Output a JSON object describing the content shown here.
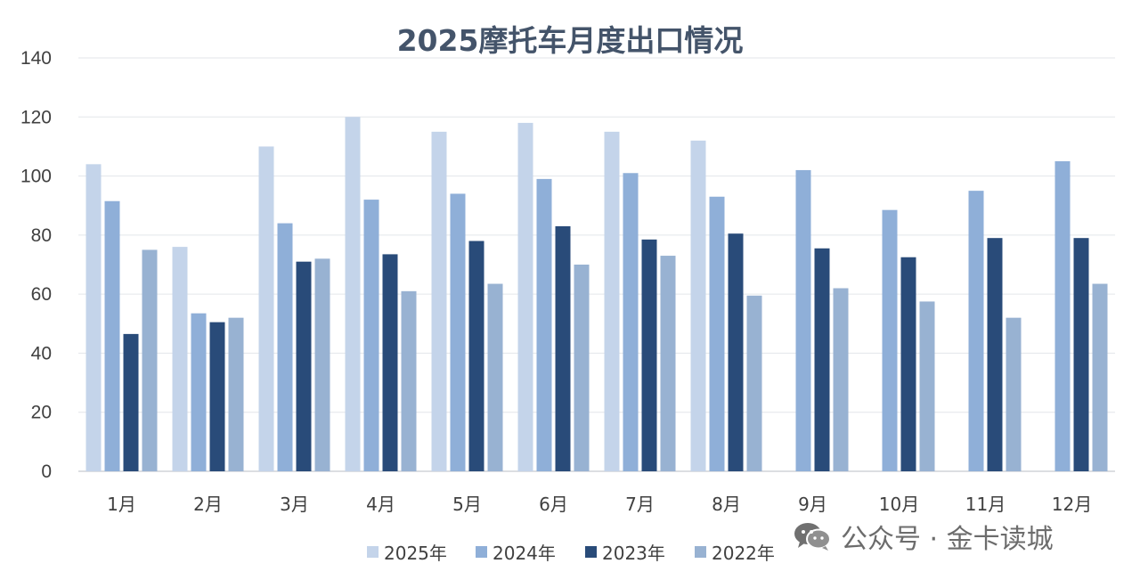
{
  "chart_data": {
    "type": "bar",
    "title": "2025摩托车月度出口情况",
    "xlabel": "",
    "ylabel": "",
    "ylim": [
      0,
      140
    ],
    "yticks": [
      0,
      20,
      40,
      60,
      80,
      100,
      120,
      140
    ],
    "grid": true,
    "legend_position": "bottom",
    "categories": [
      "1月",
      "2月",
      "3月",
      "4月",
      "5月",
      "6月",
      "7月",
      "8月",
      "9月",
      "10月",
      "11月",
      "12月"
    ],
    "series": [
      {
        "name": "2025年",
        "color": "#c4d4ea",
        "values": [
          104,
          76,
          110,
          120,
          115,
          118,
          115,
          112,
          null,
          null,
          null,
          null
        ]
      },
      {
        "name": "2024年",
        "color": "#8fafd8",
        "values": [
          91.5,
          53.5,
          84,
          92,
          94,
          99,
          101,
          93,
          102,
          88.5,
          95,
          105
        ]
      },
      {
        "name": "2023年",
        "color": "#294b79",
        "values": [
          46.5,
          50.5,
          71,
          73.5,
          78,
          83,
          78.5,
          80.5,
          75.5,
          72.5,
          79,
          79
        ]
      },
      {
        "name": "2022年",
        "color": "#98b2d2",
        "values": [
          75,
          52,
          72,
          61,
          63.5,
          70,
          73,
          59.5,
          62,
          57.5,
          52,
          63.5
        ]
      }
    ]
  },
  "watermark": {
    "icon": "wechat-icon",
    "text": "公众号 · 金卡读城"
  }
}
